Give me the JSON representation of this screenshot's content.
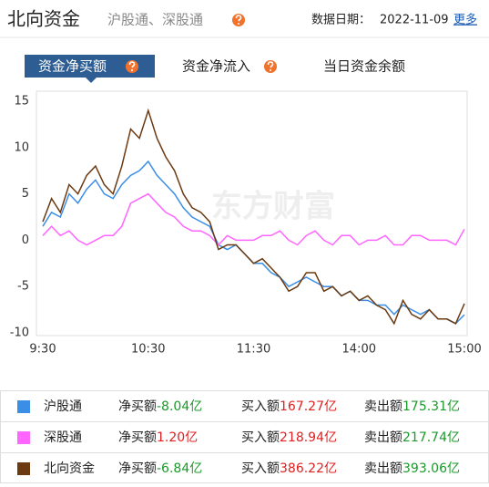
{
  "header": {
    "title": "北向资金",
    "subtitle": "沪股通、深股通",
    "date_label": "数据日期：",
    "date": "2022-11-09",
    "more": "更多"
  },
  "tabs": [
    "资金净买额",
    "资金净流入",
    "当日资金余额"
  ],
  "chart_data": {
    "type": "line",
    "watermark": "东方财富",
    "categories": [
      "9:30",
      null,
      null,
      null,
      null,
      null,
      null,
      null,
      null,
      null,
      null,
      null,
      "10:30",
      null,
      null,
      null,
      null,
      null,
      null,
      null,
      null,
      null,
      null,
      null,
      "11:30",
      null,
      null,
      null,
      null,
      null,
      null,
      null,
      null,
      null,
      null,
      null,
      "14:00",
      null,
      null,
      null,
      null,
      null,
      null,
      null,
      null,
      null,
      null,
      null,
      "15:00"
    ],
    "ylim": [
      -10,
      15
    ],
    "yticks": [
      -10,
      -5,
      0,
      5,
      10,
      15
    ],
    "grid": false,
    "series": [
      {
        "name": "沪股通",
        "color": "#3a8ee6",
        "values": [
          1.5,
          3,
          2.5,
          5,
          4,
          5.5,
          6.5,
          5,
          4.5,
          6,
          7,
          7.5,
          8.5,
          7,
          6,
          5,
          3.5,
          2.5,
          2,
          1.5,
          -0.5,
          -1,
          -0.5,
          -1.5,
          -2.5,
          -2.5,
          -3.5,
          -4,
          -5,
          -4.5,
          -4,
          -4.5,
          -5,
          -5,
          -6,
          -5.5,
          -6.5,
          -6.5,
          -7,
          -7,
          -8,
          -7,
          -7.5,
          -8,
          -7.5,
          -8.5,
          -8.5,
          -9,
          -8.04
        ]
      },
      {
        "name": "深股通",
        "color": "#ff66ff",
        "values": [
          0.5,
          1.5,
          0.5,
          1,
          0,
          -0.5,
          0,
          0.5,
          0.5,
          1.5,
          4,
          4.5,
          5,
          4,
          3,
          2.5,
          1.5,
          1,
          1,
          0.5,
          -0.5,
          0.5,
          0,
          0,
          0,
          0.5,
          0.5,
          1,
          0,
          -0.5,
          0.5,
          1,
          0,
          -0.5,
          0.5,
          0.5,
          -0.5,
          0,
          0,
          0.5,
          -0.5,
          -0.5,
          0.5,
          0.5,
          0,
          0,
          0,
          -0.5,
          1.2
        ]
      },
      {
        "name": "北向资金",
        "color": "#6b3a10",
        "values": [
          2,
          4.5,
          3,
          6,
          5,
          7,
          8,
          6,
          5,
          8,
          12,
          11,
          14,
          11,
          9,
          7.5,
          5,
          3.5,
          3,
          2,
          -1,
          -0.5,
          -0.5,
          -1.5,
          -2.5,
          -2,
          -3,
          -4,
          -5.5,
          -5,
          -3.5,
          -3.5,
          -5.5,
          -5,
          -6,
          -5.5,
          -6.5,
          -6,
          -7,
          -7.5,
          -9,
          -6.5,
          -8,
          -8.5,
          -7.5,
          -8.5,
          -8.5,
          -9,
          -6.84
        ]
      }
    ]
  },
  "table": {
    "rows": [
      {
        "net_label": "净买额",
        "net": "-8.04亿",
        "buy_label": "买入额",
        "buy": "167.27亿",
        "sell_label": "卖出额",
        "sell": "175.31亿"
      },
      {
        "net_label": "净买额",
        "net": "1.20亿",
        "buy_label": "买入额",
        "buy": "218.94亿",
        "sell_label": "卖出额",
        "sell": "217.74亿"
      },
      {
        "net_label": "净买额",
        "net": "-6.84亿",
        "buy_label": "买入额",
        "buy": "386.22亿",
        "sell_label": "卖出额",
        "sell": "393.06亿"
      }
    ]
  }
}
